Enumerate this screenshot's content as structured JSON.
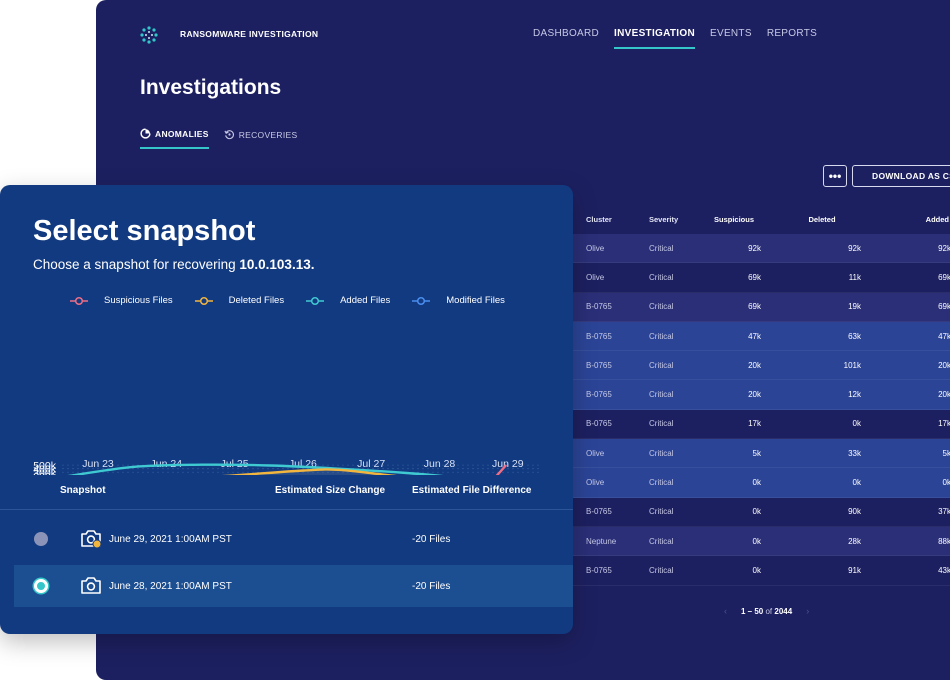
{
  "app": {
    "title": "RANSOMWARE INVESTIGATION",
    "nav": [
      {
        "label": "DASHBOARD",
        "active": false
      },
      {
        "label": "INVESTIGATION",
        "active": true
      },
      {
        "label": "EVENTS",
        "active": false
      },
      {
        "label": "REPORTS",
        "active": false
      }
    ],
    "page_title": "Investigations",
    "subtabs": [
      {
        "label": "ANOMALIES",
        "icon": "anomalies-icon",
        "active": true
      },
      {
        "label": "RECOVERIES",
        "icon": "recoveries-icon",
        "active": false
      }
    ],
    "more_label": "•••",
    "download_label": "DOWNLOAD AS CSV"
  },
  "table": {
    "headers": {
      "cluster": "Cluster",
      "severity": "Severity",
      "suspicious": "Suspicious",
      "deleted": "Deleted",
      "added": "Added"
    },
    "rows": [
      {
        "cluster": "Olive",
        "severity": "Critical",
        "suspicious": "92k",
        "deleted": "92k",
        "added": "92k",
        "style": "alt"
      },
      {
        "cluster": "Olive",
        "severity": "Critical",
        "suspicious": "69k",
        "deleted": "11k",
        "added": "69k",
        "style": ""
      },
      {
        "cluster": "B-0765",
        "severity": "Critical",
        "suspicious": "69k",
        "deleted": "19k",
        "added": "69k",
        "style": "alt"
      },
      {
        "cluster": "B-0765",
        "severity": "Critical",
        "suspicious": "47k",
        "deleted": "63k",
        "added": "47k",
        "style": "hl"
      },
      {
        "cluster": "B-0765",
        "severity": "Critical",
        "suspicious": "20k",
        "deleted": "101k",
        "added": "20k",
        "style": "hl"
      },
      {
        "cluster": "B-0765",
        "severity": "Critical",
        "suspicious": "20k",
        "deleted": "12k",
        "added": "20k",
        "style": "hl"
      },
      {
        "cluster": "B-0765",
        "severity": "Critical",
        "suspicious": "17k",
        "deleted": "0k",
        "added": "17k",
        "style": ""
      },
      {
        "cluster": "Olive",
        "severity": "Critical",
        "suspicious": "5k",
        "deleted": "33k",
        "added": "5k",
        "style": "hl"
      },
      {
        "cluster": "Olive",
        "severity": "Critical",
        "suspicious": "0k",
        "deleted": "0k",
        "added": "0k",
        "style": "hl"
      },
      {
        "cluster": "B-0765",
        "severity": "Critical",
        "suspicious": "0k",
        "deleted": "90k",
        "added": "37k",
        "style": ""
      },
      {
        "cluster": "Neptune",
        "severity": "Critical",
        "suspicious": "0k",
        "deleted": "28k",
        "added": "88k",
        "style": "alt"
      },
      {
        "cluster": "B-0765",
        "severity": "Critical",
        "suspicious": "0k",
        "deleted": "91k",
        "added": "43k",
        "style": ""
      }
    ]
  },
  "pager": {
    "prev": "‹",
    "range": "1 – 50",
    "of": "of",
    "total": "2044",
    "next": "›"
  },
  "snapshot": {
    "title": "Select snapshot",
    "subtitle_prefix": "Choose a snapshot for recovering",
    "subtitle_ip": "10.0.103.13.",
    "col_snapshot": "Snapshot",
    "col_size": "Estimated Size Change",
    "col_diff": "Estimated File Difference",
    "rows": [
      {
        "date": "June 29, 2021 1:00AM PST",
        "diff": "-20 Files",
        "selected": false,
        "warning": true
      },
      {
        "date": "June 28, 2021 1:00AM PST",
        "diff": "-20 Files",
        "selected": true,
        "warning": false
      }
    ]
  },
  "colors": {
    "suspicious": "#ee6e86",
    "deleted": "#f2b53e",
    "added": "#3fcad2",
    "modified": "#4a8ef0",
    "accent": "#34c6c9"
  },
  "chart_data": {
    "type": "line",
    "categories": [
      "Jun 23",
      "Jun 24",
      "Jul 25",
      "Jul 26",
      "Jul 27",
      "Jun 28",
      "Jun 29"
    ],
    "yticks": [
      "500k",
      "400k",
      "300k",
      "200k",
      "100k",
      "0"
    ],
    "ylim": [
      0,
      500000
    ],
    "series": [
      {
        "name": "Suspicious Files",
        "x": [
          0,
          2.5,
          3.0,
          4.3,
          5.0,
          6.0,
          6.2,
          6.45
        ],
        "values": [
          0,
          0,
          0,
          0,
          30000,
          30000,
          0,
          480000
        ]
      },
      {
        "name": "Deleted Files",
        "x": [
          0,
          1.0,
          2.0,
          3.5,
          4.0,
          4.6,
          5.3,
          6.0,
          6.45
        ],
        "values": [
          60000,
          160000,
          160000,
          350000,
          370000,
          250000,
          100000,
          10000,
          0
        ]
      },
      {
        "name": "Added Files",
        "x": [
          0,
          1.0,
          2.0,
          3.0,
          4.0,
          5.0,
          6.0,
          6.45
        ],
        "values": [
          180000,
          450000,
          510000,
          490000,
          400000,
          280000,
          120000,
          120000
        ]
      },
      {
        "name": "Modified Files",
        "x": [
          0,
          1.0,
          2.5,
          3.0,
          4.0,
          5.0,
          5.5,
          6.0,
          6.45
        ],
        "values": [
          10000,
          30000,
          50000,
          20000,
          10000,
          20000,
          90000,
          90000,
          0
        ]
      }
    ]
  }
}
